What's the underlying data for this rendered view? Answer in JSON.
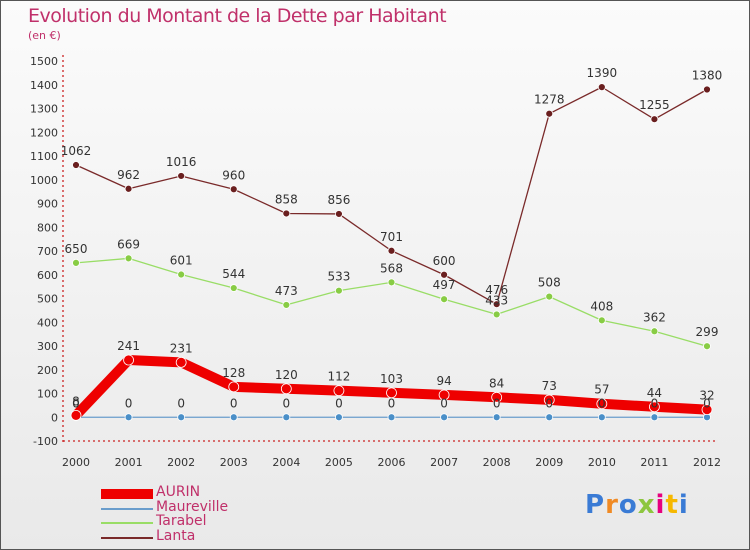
{
  "title": "Evolution du Montant de la Dette par Habitant",
  "subtitle": "(en €)",
  "logo_text": "Proxiti",
  "chart_data": {
    "type": "line",
    "title": "Evolution du Montant de la Dette par Habitant",
    "ylabel": "(en €)",
    "xlabel": "",
    "x": [
      2000,
      2001,
      2002,
      2003,
      2004,
      2005,
      2006,
      2007,
      2008,
      2009,
      2010,
      2011,
      2012
    ],
    "yticks": [
      -100,
      0,
      100,
      200,
      300,
      400,
      500,
      600,
      700,
      800,
      900,
      1000,
      1100,
      1200,
      1300,
      1400,
      1500
    ],
    "ylim": [
      -100,
      1500
    ],
    "grid": false,
    "legend": "bottom-left",
    "series": [
      {
        "name": "AURIN",
        "color": "#ee0000",
        "values": [
          8,
          241,
          231,
          128,
          120,
          112,
          103,
          94,
          84,
          73,
          57,
          44,
          32
        ]
      },
      {
        "name": "Maureville",
        "color": "#6a9dcc",
        "values": [
          0,
          0,
          0,
          0,
          0,
          0,
          0,
          0,
          0,
          0,
          0,
          0,
          0
        ]
      },
      {
        "name": "Tarabel",
        "color": "#99dd66",
        "values": [
          650,
          669,
          601,
          544,
          473,
          533,
          568,
          497,
          433,
          508,
          408,
          362,
          299
        ]
      },
      {
        "name": "Lanta",
        "color": "#7a2a2a",
        "values": [
          1062,
          962,
          1016,
          960,
          858,
          856,
          701,
          600,
          476,
          1278,
          1390,
          1255,
          1380
        ]
      }
    ]
  }
}
